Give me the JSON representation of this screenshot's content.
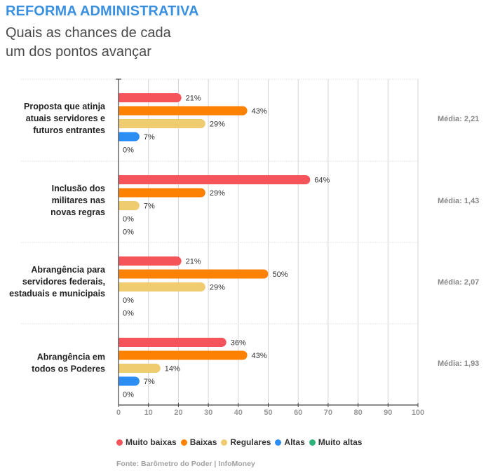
{
  "header": {
    "title": "REFORMA ADMINISTRATIVA",
    "subtitle_line1": "Quais as chances de cada",
    "subtitle_line2": "um dos pontos avançar"
  },
  "legend": [
    {
      "label": "Muito baixas",
      "color": "#f4545a"
    },
    {
      "label": "Baixas",
      "color": "#fd8204"
    },
    {
      "label": "Regulares",
      "color": "#f0cc71"
    },
    {
      "label": "Altas",
      "color": "#2c8df3"
    },
    {
      "label": "Muito altas",
      "color": "#2db37a"
    }
  ],
  "source": "Fonte: Barômetro do Poder | InfoMoney",
  "chart_data": {
    "type": "bar",
    "orientation": "horizontal",
    "title": "REFORMA ADMINISTRATIVA",
    "subtitle": "Quais as chances de cada um dos pontos avançar",
    "xlabel": "",
    "ylabel": "",
    "xlim": [
      0,
      100
    ],
    "x_ticks": [
      0,
      10,
      20,
      30,
      40,
      50,
      60,
      70,
      80,
      90,
      100
    ],
    "grid": true,
    "legend_position": "bottom",
    "value_suffix": "%",
    "series_names": [
      "Muito baixas",
      "Baixas",
      "Regulares",
      "Altas",
      "Muito altas"
    ],
    "series_colors": [
      "#f4545a",
      "#fd8204",
      "#f0cc71",
      "#2c8df3",
      "#2db37a"
    ],
    "groups": [
      {
        "label_lines": [
          "Proposta que atinja",
          "atuais servidores e",
          "futuros entrantes"
        ],
        "values": [
          21,
          43,
          29,
          7,
          0
        ],
        "average_label": "Média: 2,21",
        "average": 2.21
      },
      {
        "label_lines": [
          "Inclusão dos",
          "militares nas",
          "novas regras"
        ],
        "values": [
          64,
          29,
          7,
          0,
          0
        ],
        "average_label": "Média: 1,43",
        "average": 1.43
      },
      {
        "label_lines": [
          "Abrangência para",
          "servidores federais,",
          "estaduais e municipais"
        ],
        "values": [
          21,
          50,
          29,
          0,
          0
        ],
        "average_label": "Média: 2,07",
        "average": 2.07
      },
      {
        "label_lines": [
          "Abrangência em",
          "todos os Poderes"
        ],
        "values": [
          36,
          43,
          14,
          7,
          0
        ],
        "average_label": "Média: 1,93",
        "average": 1.93
      }
    ]
  }
}
